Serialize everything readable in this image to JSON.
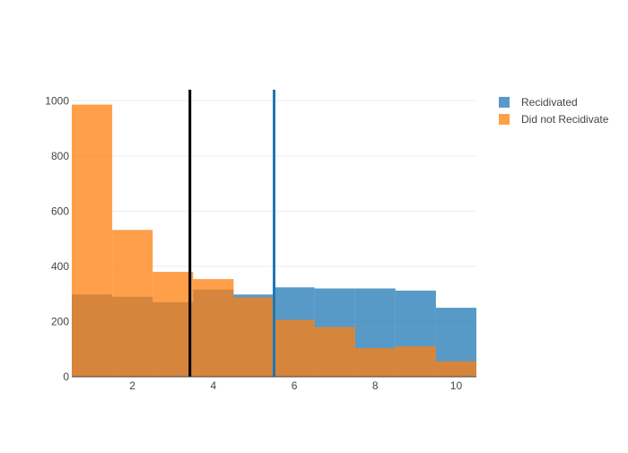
{
  "chart_data": {
    "type": "bar",
    "mode": "overlay",
    "x_bins": [
      [
        0.5,
        1.5
      ],
      [
        1.5,
        2.5
      ],
      [
        2.5,
        3.5
      ],
      [
        3.5,
        4.5
      ],
      [
        4.5,
        5.5
      ],
      [
        5.5,
        6.5
      ],
      [
        6.5,
        7.5
      ],
      [
        7.5,
        8.5
      ],
      [
        8.5,
        9.5
      ],
      [
        9.5,
        10.5
      ]
    ],
    "series": [
      {
        "name": "Recidivated",
        "color": "#1f77b4",
        "values": [
          298,
          290,
          270,
          316,
          298,
          324,
          320,
          320,
          312,
          250
        ]
      },
      {
        "name": "Did not Recidivate",
        "color": "#ff7f0e",
        "values": [
          986,
          532,
          380,
          354,
          288,
          206,
          180,
          104,
          110,
          56
        ]
      }
    ],
    "vertical_lines": [
      {
        "x": 3.42,
        "color": "#000000"
      },
      {
        "x": 5.5,
        "color": "#1f77b4"
      }
    ],
    "xlim": [
      0.5,
      10.5
    ],
    "ylim": [
      0,
      1040
    ],
    "x_ticks": [
      2,
      4,
      6,
      8,
      10
    ],
    "y_ticks": [
      0,
      200,
      400,
      600,
      800,
      1000
    ],
    "legend_position": "top-right",
    "grid": true
  }
}
